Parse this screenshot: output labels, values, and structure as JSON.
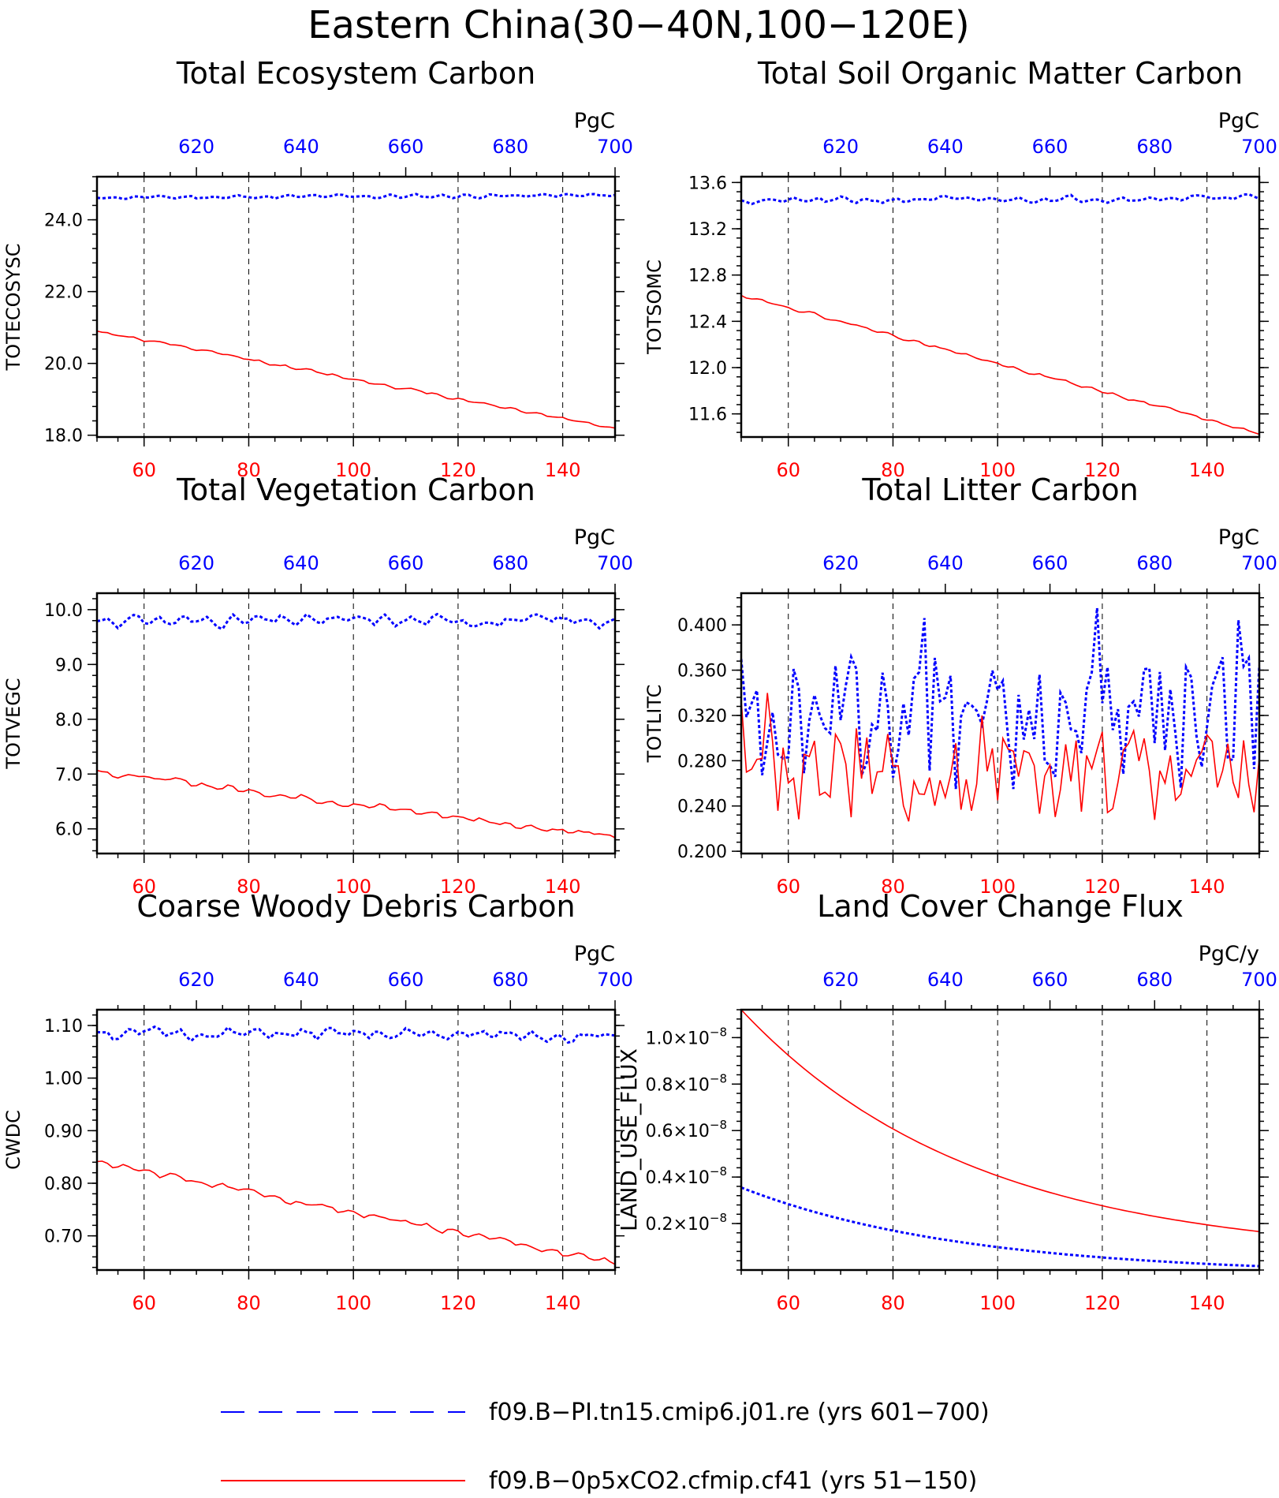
{
  "page": {
    "title": "Eastern China(30−40N,100−120E)",
    "colors": {
      "pi": "#0000ff",
      "exp": "#ff0000",
      "axis": "#000000",
      "grid": "#000000"
    }
  },
  "legend": {
    "items": [
      {
        "label": "f09.B−PI.tn15.cmip6.j01.re (yrs 601−700)",
        "style": "dashed",
        "color": "#0000ff"
      },
      {
        "label": "f09.B−0p5xCO2.cfmip.cf41 (yrs 51−150)",
        "style": "solid",
        "color": "#ff0000"
      }
    ]
  },
  "chart_data": [
    {
      "type": "line",
      "title": "Total Ecosystem Carbon",
      "ylabel": "TOTECOSYSC",
      "units": "PgC",
      "xlim": [
        51,
        150
      ],
      "x2lim": [
        601,
        700
      ],
      "ylim": [
        17.95,
        25.2
      ],
      "xticks": [
        60,
        80,
        100,
        120,
        140
      ],
      "x2ticks": [
        620,
        640,
        660,
        680,
        700
      ],
      "yticks": [
        18.0,
        20.0,
        22.0,
        24.0
      ],
      "ytick_labels": [
        "18.0",
        "20.0",
        "22.0",
        "24.0"
      ],
      "yminor": 0.4,
      "grid": "vertical-dashed",
      "series": [
        {
          "color": "#0000ff",
          "style": "dotted",
          "gen": {
            "type": "noise",
            "start": 24.62,
            "end": 24.68,
            "amp": 0.06,
            "seed": 11
          }
        },
        {
          "color": "#ff0000",
          "style": "solid",
          "gen": {
            "type": "noise",
            "start": 20.9,
            "end": 18.2,
            "amp": 0.05,
            "seed": 12
          }
        }
      ]
    },
    {
      "type": "line",
      "title": "Total Soil Organic Matter Carbon",
      "ylabel": "TOTSOMC",
      "units": "PgC",
      "xlim": [
        51,
        150
      ],
      "x2lim": [
        601,
        700
      ],
      "ylim": [
        11.4,
        13.65
      ],
      "xticks": [
        60,
        80,
        100,
        120,
        140
      ],
      "x2ticks": [
        620,
        640,
        660,
        680,
        700
      ],
      "yticks": [
        11.6,
        12.0,
        12.4,
        12.8,
        13.2,
        13.6
      ],
      "ytick_labels": [
        "11.6",
        "12.0",
        "12.4",
        "12.8",
        "13.2",
        "13.6"
      ],
      "yminor": 0.08,
      "grid": "vertical-dashed",
      "series": [
        {
          "color": "#0000ff",
          "style": "dotted",
          "gen": {
            "type": "noise",
            "start": 13.44,
            "end": 13.47,
            "amp": 0.03,
            "seed": 21
          }
        },
        {
          "color": "#ff0000",
          "style": "solid",
          "gen": {
            "type": "noise",
            "start": 12.63,
            "end": 11.43,
            "amp": 0.015,
            "seed": 22
          }
        }
      ]
    },
    {
      "type": "line",
      "title": "Total Vegetation Carbon",
      "ylabel": "TOTVEGC",
      "units": "PgC",
      "xlim": [
        51,
        150
      ],
      "x2lim": [
        601,
        700
      ],
      "ylim": [
        5.55,
        10.3
      ],
      "xticks": [
        60,
        80,
        100,
        120,
        140
      ],
      "x2ticks": [
        620,
        640,
        660,
        680,
        700
      ],
      "yticks": [
        6.0,
        7.0,
        8.0,
        9.0,
        10.0
      ],
      "ytick_labels": [
        "6.0",
        "7.0",
        "8.0",
        "9.0",
        "10.0"
      ],
      "yminor": 0.2,
      "grid": "vertical-dashed",
      "series": [
        {
          "color": "#0000ff",
          "style": "dotted",
          "gen": {
            "type": "noise",
            "start": 9.8,
            "end": 9.8,
            "amp": 0.12,
            "seed": 31
          }
        },
        {
          "color": "#ff0000",
          "style": "solid",
          "gen": {
            "type": "noise",
            "start": 7.05,
            "end": 5.85,
            "amp": 0.07,
            "seed": 32
          }
        }
      ]
    },
    {
      "type": "line",
      "title": "Total Litter Carbon",
      "ylabel": "TOTLITC",
      "units": "PgC",
      "xlim": [
        51,
        150
      ],
      "x2lim": [
        601,
        700
      ],
      "ylim": [
        0.198,
        0.428
      ],
      "xticks": [
        60,
        80,
        100,
        120,
        140
      ],
      "x2ticks": [
        620,
        640,
        660,
        680,
        700
      ],
      "yticks": [
        0.2,
        0.24,
        0.28,
        0.32,
        0.36,
        0.4
      ],
      "ytick_labels": [
        "0.200",
        "0.240",
        "0.280",
        "0.320",
        "0.360",
        "0.400"
      ],
      "yminor": 0.008,
      "grid": "vertical-dashed",
      "series": [
        {
          "color": "#0000ff",
          "style": "dotted",
          "gen": {
            "type": "spiky",
            "base": 0.3,
            "amp": 0.06,
            "seed": 41,
            "min": 0.255,
            "max": 0.415
          }
        },
        {
          "color": "#ff0000",
          "style": "solid",
          "gen": {
            "type": "spiky",
            "base": 0.257,
            "amp": 0.04,
            "seed": 42,
            "min": 0.208,
            "max": 0.345
          }
        }
      ]
    },
    {
      "type": "line",
      "title": "Coarse Woody Debris Carbon",
      "ylabel": "CWDC",
      "units": "PgC",
      "xlim": [
        51,
        150
      ],
      "x2lim": [
        601,
        700
      ],
      "ylim": [
        0.635,
        1.13
      ],
      "xticks": [
        60,
        80,
        100,
        120,
        140
      ],
      "x2ticks": [
        620,
        640,
        660,
        680,
        700
      ],
      "yticks": [
        0.7,
        0.8,
        0.9,
        1.0,
        1.1
      ],
      "ytick_labels": [
        "0.70",
        "0.80",
        "0.90",
        "1.00",
        "1.10"
      ],
      "yminor": 0.02,
      "grid": "vertical-dashed",
      "series": [
        {
          "color": "#0000ff",
          "style": "dotted",
          "gen": {
            "type": "noise",
            "start": 1.085,
            "end": 1.08,
            "amp": 0.013,
            "seed": 51
          }
        },
        {
          "color": "#ff0000",
          "style": "solid",
          "gen": {
            "type": "noise",
            "start": 0.84,
            "end": 0.648,
            "amp": 0.007,
            "seed": 52
          }
        }
      ]
    },
    {
      "type": "line",
      "title": "Land Cover Change Flux",
      "ylabel": "LAND_USE_FLUX",
      "units": "PgC/y",
      "xlim": [
        51,
        150
      ],
      "x2lim": [
        601,
        700
      ],
      "ylim": [
        0.0,
        1.12
      ],
      "xticks": [
        60,
        80,
        100,
        120,
        140
      ],
      "x2ticks": [
        620,
        640,
        660,
        680,
        700
      ],
      "yticks": [
        0.2,
        0.4,
        0.6,
        0.8,
        1.0
      ],
      "ytick_labels": [
        {
          "mant": "0.2×10",
          "exp": "−8"
        },
        {
          "mant": "0.4×10",
          "exp": "−8"
        },
        {
          "mant": "0.6×10",
          "exp": "−8"
        },
        {
          "mant": "0.8×10",
          "exp": "−8"
        },
        {
          "mant": "1.0×10",
          "exp": "−8"
        }
      ],
      "yscale_note": "×10−8",
      "yminor": 0.04,
      "grid": "vertical-dashed",
      "series": [
        {
          "color": "#0000ff",
          "style": "dotted",
          "gen": {
            "type": "exp",
            "start": 0.355,
            "rate": 0.0235,
            "offset": -0.02
          }
        },
        {
          "color": "#ff0000",
          "style": "solid",
          "gen": {
            "type": "exp",
            "start": 1.12,
            "rate": 0.0225,
            "offset": 0.05
          }
        }
      ]
    }
  ]
}
